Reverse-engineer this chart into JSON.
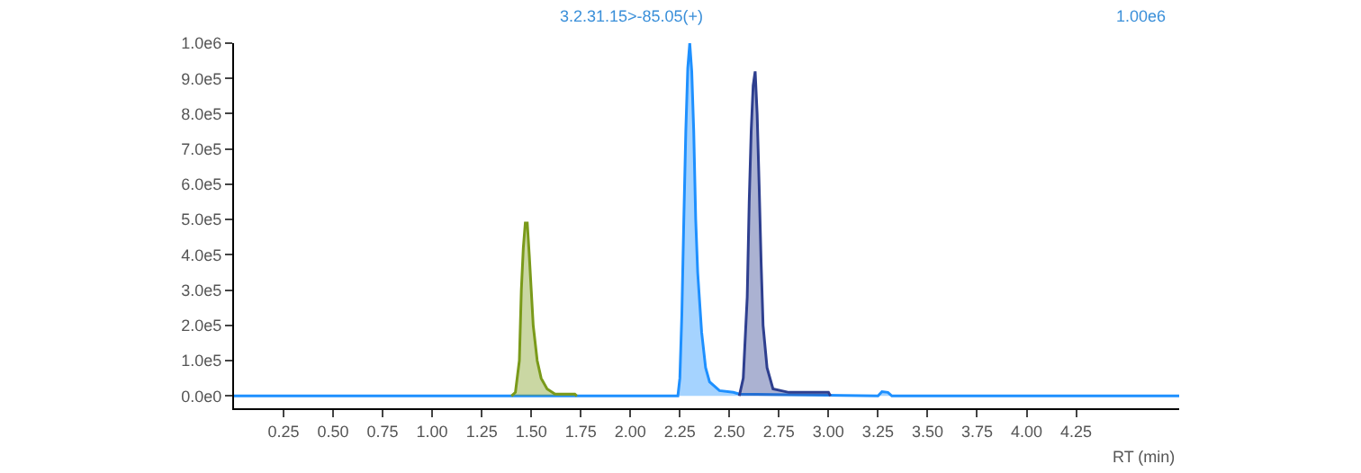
{
  "chart_data": {
    "type": "area",
    "title": "3.2.31.15>-85.05(+)",
    "annotations": [
      "1.00e6"
    ],
    "xlabel": "RT (min)",
    "xlim": [
      0,
      4.77
    ],
    "ylim": [
      -35000,
      1000000
    ],
    "xticks": [
      {
        "value": 0.25,
        "label": "0.25"
      },
      {
        "value": 0.5,
        "label": "0.50"
      },
      {
        "value": 0.75,
        "label": "0.75"
      },
      {
        "value": 1,
        "label": "1.00"
      },
      {
        "value": 1.25,
        "label": "1.25"
      },
      {
        "value": 1.5,
        "label": "1.50"
      },
      {
        "value": 1.75,
        "label": "1.75"
      },
      {
        "value": 2,
        "label": "2.00"
      },
      {
        "value": 2.25,
        "label": "2.25"
      },
      {
        "value": 2.5,
        "label": "2.50"
      },
      {
        "value": 2.75,
        "label": "2.75"
      },
      {
        "value": 3,
        "label": "3.00"
      },
      {
        "value": 3.25,
        "label": "3.25"
      },
      {
        "value": 3.5,
        "label": "3.50"
      },
      {
        "value": 3.75,
        "label": "3.75"
      },
      {
        "value": 4,
        "label": "4.00"
      },
      {
        "value": 4.25,
        "label": "4.25"
      }
    ],
    "yticks": [
      {
        "value": 0,
        "label": "0.0e0"
      },
      {
        "value": 100000,
        "label": "1.0e5"
      },
      {
        "value": 200000,
        "label": "2.0e5"
      },
      {
        "value": 300000,
        "label": "3.0e5"
      },
      {
        "value": 400000,
        "label": "4.0e5"
      },
      {
        "value": 500000,
        "label": "5.0e5"
      },
      {
        "value": 600000,
        "label": "6.0e5"
      },
      {
        "value": 700000,
        "label": "7.0e5"
      },
      {
        "value": 800000,
        "label": "8.0e5"
      },
      {
        "value": 900000,
        "label": "9.0e5"
      },
      {
        "value": 1000000,
        "label": "1.0e6"
      }
    ],
    "series": [
      {
        "color": "#1e90ff",
        "x": [
          0,
          2.24,
          2.25,
          2.26,
          2.27,
          2.28,
          2.29,
          2.3,
          2.31,
          2.32,
          2.33,
          2.34,
          2.36,
          2.38,
          2.4,
          2.45,
          2.52,
          2.55,
          3.25,
          3.27,
          3.3,
          3.32,
          4.77
        ],
        "values": [
          0,
          0,
          50000,
          230000,
          500000,
          750000,
          930000,
          1000000,
          920000,
          750000,
          500000,
          350000,
          180000,
          80000,
          40000,
          15000,
          10000,
          5000,
          0,
          12000,
          10000,
          0,
          0
        ]
      },
      {
        "color": "#7a9a1a",
        "x": [
          1.4,
          1.42,
          1.44,
          1.45,
          1.46,
          1.47,
          1.48,
          1.49,
          1.5,
          1.51,
          1.53,
          1.55,
          1.58,
          1.62,
          1.72,
          1.73
        ],
        "values": [
          0,
          10000,
          100000,
          300000,
          420000,
          490000,
          490000,
          400000,
          300000,
          200000,
          100000,
          50000,
          20000,
          5000,
          5000,
          0
        ]
      },
      {
        "color": "#2e3f8f",
        "x": [
          2.55,
          2.57,
          2.59,
          2.6,
          2.61,
          2.62,
          2.63,
          2.64,
          2.65,
          2.66,
          2.67,
          2.69,
          2.72,
          2.8,
          3.0,
          3.01
        ],
        "values": [
          0,
          50000,
          280000,
          550000,
          750000,
          880000,
          920000,
          800000,
          600000,
          380000,
          200000,
          80000,
          20000,
          10000,
          10000,
          0
        ]
      }
    ]
  }
}
